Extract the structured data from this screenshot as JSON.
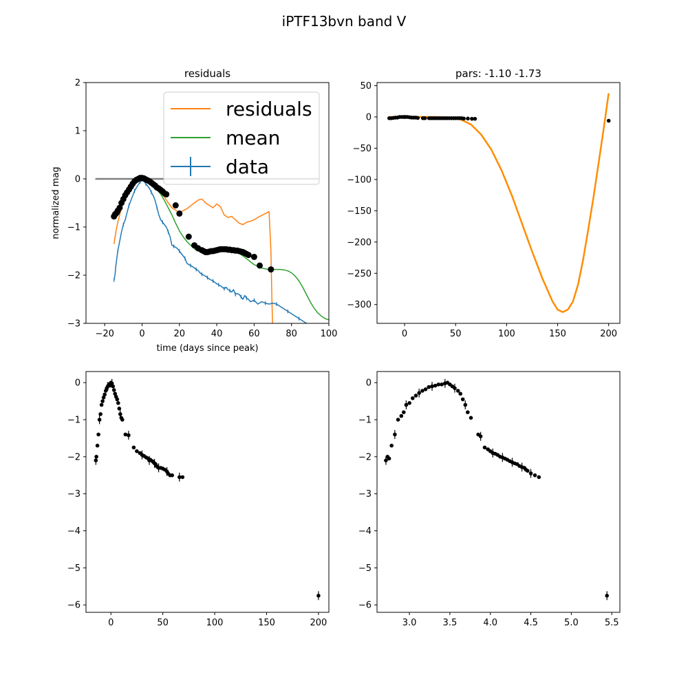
{
  "figure": {
    "suptitle": "iPTF13bvn band V"
  },
  "colors": {
    "residuals": "#ff7f0e",
    "mean": "#2ca02c",
    "data": "#1f77b4",
    "points": "#000000",
    "fit": "#ff8c00",
    "zero_line": "#808080"
  },
  "chart_data": [
    {
      "id": "top-left",
      "type": "line",
      "title": "residuals",
      "xlabel": "time (days since peak)",
      "ylabel": "normalized mag",
      "xlim": [
        -30,
        100
      ],
      "ylim": [
        -3,
        2
      ],
      "xticks": [
        -20,
        0,
        20,
        40,
        60,
        80,
        100
      ],
      "yticks": [
        -3,
        -2,
        -1,
        0,
        1,
        2
      ],
      "xtick_labels": [
        "−20",
        "0",
        "20",
        "40",
        "60",
        "80",
        "100"
      ],
      "ytick_labels": [
        "−3",
        "−2",
        "−1",
        "0",
        "1",
        "2"
      ],
      "legend": {
        "position": "upper-right",
        "entries": [
          "residuals",
          "mean",
          "data"
        ]
      },
      "zero_line": {
        "x": [
          -25,
          95
        ],
        "y": [
          0,
          0
        ]
      },
      "series": [
        {
          "name": "residuals",
          "x": [
            -15,
            -14,
            -13,
            -12,
            -11,
            -10,
            -8,
            -6,
            -4,
            -2,
            0,
            2,
            4,
            6,
            8,
            10,
            12,
            14,
            16,
            18,
            20,
            22,
            24,
            26,
            28,
            30,
            32,
            34,
            36,
            38,
            40,
            42,
            44,
            46,
            48,
            50,
            52,
            54,
            56,
            58,
            60,
            62,
            64,
            66,
            68,
            69,
            69.5,
            70
          ],
          "y": [
            -1.35,
            -1.1,
            -0.9,
            -0.75,
            -0.6,
            -0.45,
            -0.3,
            -0.18,
            -0.08,
            -0.02,
            0.0,
            -0.02,
            -0.06,
            -0.12,
            -0.2,
            -0.28,
            -0.38,
            -0.5,
            -0.6,
            -0.65,
            -0.7,
            -0.66,
            -0.62,
            -0.56,
            -0.5,
            -0.44,
            -0.42,
            -0.5,
            -0.55,
            -0.6,
            -0.52,
            -0.58,
            -0.75,
            -0.8,
            -0.78,
            -0.85,
            -0.92,
            -0.95,
            -0.9,
            -0.88,
            -0.85,
            -0.8,
            -0.76,
            -0.72,
            -0.68,
            -1.5,
            -2.5,
            -3.2
          ]
        },
        {
          "name": "mean",
          "x": [
            -15,
            -12,
            -10,
            -8,
            -6,
            -4,
            -2,
            0,
            2,
            4,
            6,
            8,
            10,
            12,
            14,
            16,
            18,
            20,
            22,
            24,
            26,
            28,
            30,
            32,
            34,
            36,
            38,
            40,
            42,
            44,
            46,
            48,
            50,
            52,
            54,
            56,
            58,
            60,
            62,
            64,
            66,
            68,
            70,
            72,
            74,
            76,
            78,
            80,
            82,
            84,
            86,
            88,
            90,
            92,
            94,
            96,
            98,
            100
          ],
          "y": [
            -0.78,
            -0.6,
            -0.45,
            -0.3,
            -0.18,
            -0.08,
            -0.02,
            0.0,
            -0.03,
            -0.08,
            -0.15,
            -0.22,
            -0.32,
            -0.45,
            -0.6,
            -0.75,
            -0.92,
            -1.08,
            -1.2,
            -1.3,
            -1.38,
            -1.45,
            -1.5,
            -1.52,
            -1.52,
            -1.5,
            -1.48,
            -1.46,
            -1.46,
            -1.47,
            -1.48,
            -1.5,
            -1.52,
            -1.55,
            -1.6,
            -1.66,
            -1.72,
            -1.78,
            -1.82,
            -1.85,
            -1.87,
            -1.88,
            -1.88,
            -1.88,
            -1.88,
            -1.89,
            -1.91,
            -1.95,
            -2.02,
            -2.12,
            -2.25,
            -2.4,
            -2.55,
            -2.68,
            -2.78,
            -2.85,
            -2.9,
            -2.93
          ]
        },
        {
          "name": "data",
          "x": [
            -15,
            -14.5,
            -14,
            -13,
            -12,
            -11,
            -10,
            -9,
            -8,
            -7,
            -6,
            -5,
            -4,
            -3,
            -2,
            -1,
            0,
            1,
            2,
            3,
            4,
            5,
            6,
            7,
            8,
            9,
            10,
            11,
            12,
            13,
            14,
            15,
            16,
            17,
            18,
            19,
            20,
            21,
            22,
            23,
            24,
            25,
            26,
            27,
            28,
            29,
            30,
            31,
            32,
            33,
            34,
            35,
            36,
            37,
            38,
            39,
            40,
            41,
            42,
            43,
            44,
            45,
            46,
            47,
            48,
            49,
            50,
            51,
            52,
            53,
            54,
            55,
            56,
            57,
            58,
            60,
            62,
            64,
            66,
            68,
            70,
            72,
            74,
            76,
            78,
            80,
            82,
            84,
            86,
            88
          ],
          "y": [
            -2.1,
            -2.0,
            -1.8,
            -1.5,
            -1.3,
            -1.1,
            -0.95,
            -0.85,
            -0.7,
            -0.55,
            -0.45,
            -0.35,
            -0.25,
            -0.18,
            -0.12,
            -0.06,
            -0.04,
            -0.05,
            -0.1,
            -0.15,
            -0.2,
            -0.28,
            -0.35,
            -0.45,
            -0.6,
            -0.75,
            -0.85,
            -0.9,
            -0.95,
            -1.0,
            -1.1,
            -1.2,
            -1.38,
            -1.4,
            -1.42,
            -1.45,
            -1.5,
            -1.55,
            -1.6,
            -1.65,
            -1.75,
            -1.78,
            -1.8,
            -1.82,
            -1.85,
            -1.88,
            -1.9,
            -1.95,
            -1.98,
            -2.0,
            -2.02,
            -2.05,
            -2.08,
            -2.1,
            -2.12,
            -2.15,
            -2.18,
            -2.2,
            -2.22,
            -2.25,
            -2.28,
            -2.25,
            -2.3,
            -2.32,
            -2.35,
            -2.3,
            -2.4,
            -2.38,
            -2.4,
            -2.45,
            -2.5,
            -2.42,
            -2.48,
            -2.5,
            -2.55,
            -2.52,
            -2.6,
            -2.55,
            -2.58,
            -2.6,
            -2.58,
            -2.6,
            -2.65,
            -2.7,
            -2.75,
            -2.8,
            -2.85,
            -2.9,
            -2.95,
            -3.0
          ]
        }
      ],
      "points": {
        "x": [
          -15,
          -14.5,
          -14,
          -13.5,
          -13,
          -12,
          -11,
          -10,
          -9,
          -8,
          -7,
          -6,
          -5,
          -4,
          -3,
          -2,
          -1,
          0,
          1,
          2,
          3,
          4,
          5,
          6,
          7,
          8,
          9,
          10,
          11,
          12,
          13,
          18,
          20,
          25,
          28,
          30,
          32,
          33,
          34,
          35,
          36,
          37,
          38,
          39,
          40,
          41,
          42,
          43,
          44,
          45,
          46,
          47,
          48,
          49,
          50,
          51,
          52,
          53,
          54,
          55,
          56,
          57,
          60,
          63,
          69
        ],
        "y": [
          -0.78,
          -0.74,
          -0.72,
          -0.7,
          -0.66,
          -0.6,
          -0.5,
          -0.42,
          -0.34,
          -0.28,
          -0.22,
          -0.16,
          -0.1,
          -0.05,
          -0.02,
          0.0,
          0.02,
          0.02,
          0.01,
          -0.01,
          -0.03,
          -0.05,
          -0.08,
          -0.11,
          -0.14,
          -0.18,
          -0.2,
          -0.23,
          -0.26,
          -0.3,
          -0.32,
          -0.55,
          -0.72,
          -1.2,
          -1.38,
          -1.44,
          -1.48,
          -1.5,
          -1.52,
          -1.52,
          -1.51,
          -1.5,
          -1.5,
          -1.49,
          -1.48,
          -1.47,
          -1.46,
          -1.46,
          -1.46,
          -1.46,
          -1.47,
          -1.47,
          -1.48,
          -1.48,
          -1.49,
          -1.49,
          -1.5,
          -1.51,
          -1.52,
          -1.54,
          -1.56,
          -1.58,
          -1.62,
          -1.8,
          -1.88
        ]
      }
    },
    {
      "id": "top-right",
      "type": "line",
      "title": "pars: -1.10 -1.73",
      "xlim": [
        -27,
        211
      ],
      "ylim": [
        -330,
        55
      ],
      "xticks": [
        0,
        50,
        100,
        150,
        200
      ],
      "yticks": [
        50,
        0,
        -50,
        -100,
        -150,
        -200,
        -250,
        -300
      ],
      "xtick_labels": [
        "0",
        "50",
        "100",
        "150",
        "200"
      ],
      "ytick_labels": [
        "50",
        "0",
        "−50",
        "−100",
        "−150",
        "−200",
        "−250",
        "−300"
      ],
      "series": [
        {
          "name": "",
          "x": [
            -15,
            0,
            15,
            30,
            45,
            55,
            65,
            75,
            85,
            95,
            105,
            115,
            125,
            135,
            145,
            150,
            155,
            160,
            165,
            170,
            175,
            180,
            185,
            190,
            195,
            200
          ],
          "y": [
            0,
            0,
            0,
            0,
            -1,
            -4,
            -12,
            -28,
            -52,
            -85,
            -125,
            -170,
            -215,
            -258,
            -295,
            -308,
            -312,
            -308,
            -295,
            -268,
            -228,
            -180,
            -130,
            -75,
            -20,
            38
          ]
        }
      ],
      "points": {
        "x": [
          -15,
          -13,
          -11,
          -9,
          -7,
          -5,
          -3,
          -1,
          0,
          1,
          3,
          5,
          7,
          9,
          11,
          13,
          18,
          20,
          24,
          26,
          28,
          30,
          32,
          34,
          36,
          38,
          40,
          42,
          44,
          46,
          48,
          50,
          52,
          54,
          56,
          58,
          62,
          66,
          69,
          200
        ],
        "y": [
          -2,
          -2,
          -1.5,
          -1,
          -1,
          0,
          0,
          0,
          0,
          0,
          0,
          -0.5,
          -1,
          -1,
          -1,
          -1.5,
          -2,
          -2,
          -2,
          -2,
          -2,
          -2,
          -2,
          -2,
          -2,
          -2,
          -2,
          -2,
          -2,
          -2,
          -2,
          -2,
          -2,
          -2,
          -2,
          -2.5,
          -2.5,
          -3,
          -3,
          -6
        ]
      }
    },
    {
      "id": "bottom-left",
      "type": "scatter",
      "xlim": [
        -24,
        210
      ],
      "ylim": [
        -6.2,
        0.3
      ],
      "xticks": [
        0,
        50,
        100,
        150,
        200
      ],
      "yticks": [
        0,
        -1,
        -2,
        -3,
        -4,
        -5,
        -6
      ],
      "xtick_labels": [
        "0",
        "50",
        "100",
        "150",
        "200"
      ],
      "ytick_labels": [
        "0",
        "−1",
        "−2",
        "−3",
        "−4",
        "−5",
        "−6"
      ],
      "points": {
        "x": [
          -14.5,
          -14,
          -13,
          -12,
          -11,
          -10,
          -9,
          -8,
          -7,
          -6,
          -5,
          -4,
          -3,
          -2,
          -1,
          0,
          1,
          2,
          3,
          4,
          5,
          6,
          7,
          8,
          9,
          10,
          11,
          14,
          17,
          22,
          25,
          28,
          30,
          32,
          34,
          36,
          37,
          38,
          40,
          41,
          42,
          43,
          44,
          45,
          46,
          48,
          50,
          52,
          54,
          55,
          57,
          59,
          66,
          69,
          200
        ],
        "y": [
          -2.1,
          -2.0,
          -1.7,
          -1.4,
          -1.0,
          -0.85,
          -0.6,
          -0.5,
          -0.4,
          -0.32,
          -0.22,
          -0.15,
          -0.1,
          -0.05,
          -0.08,
          0.0,
          -0.02,
          -0.1,
          -0.2,
          -0.3,
          -0.38,
          -0.45,
          -0.55,
          -0.7,
          -0.85,
          -0.95,
          -1.0,
          -1.4,
          -1.42,
          -1.75,
          -1.85,
          -1.9,
          -1.95,
          -1.98,
          -2.02,
          -2.05,
          -2.1,
          -2.08,
          -2.12,
          -2.15,
          -2.18,
          -2.2,
          -2.25,
          -2.28,
          -2.3,
          -2.3,
          -2.32,
          -2.35,
          -2.4,
          -2.45,
          -2.5,
          -2.5,
          -2.55,
          -2.55,
          -5.75
        ]
      }
    },
    {
      "id": "bottom-right",
      "type": "scatter",
      "xlim": [
        2.6,
        5.6
      ],
      "ylim": [
        -6.2,
        0.3
      ],
      "xticks": [
        3.0,
        3.5,
        4.0,
        4.5,
        5.0,
        5.5
      ],
      "yticks": [
        0,
        -1,
        -2,
        -3,
        -4,
        -5,
        -6
      ],
      "xtick_labels": [
        "3.0",
        "3.5",
        "4.0",
        "4.5",
        "5.0",
        "5.5"
      ],
      "ytick_labels": [
        "0",
        "−1",
        "−2",
        "−3",
        "−4",
        "−5",
        "−6"
      ],
      "points": {
        "x": [
          2.71,
          2.73,
          2.75,
          2.78,
          2.82,
          2.86,
          2.9,
          2.93,
          2.96,
          3.0,
          3.04,
          3.08,
          3.12,
          3.16,
          3.2,
          3.24,
          3.28,
          3.32,
          3.36,
          3.4,
          3.44,
          3.47,
          3.5,
          3.53,
          3.56,
          3.6,
          3.63,
          3.66,
          3.69,
          3.72,
          3.76,
          3.85,
          3.88,
          3.93,
          3.97,
          4.0,
          4.03,
          4.06,
          4.09,
          4.12,
          4.15,
          4.18,
          4.21,
          4.24,
          4.27,
          4.3,
          4.33,
          4.36,
          4.39,
          4.42,
          4.44,
          4.46,
          4.5,
          4.55,
          4.6,
          5.44
        ],
        "y": [
          -2.1,
          -2.0,
          -2.05,
          -1.7,
          -1.4,
          -1.0,
          -0.9,
          -0.8,
          -0.6,
          -0.55,
          -0.42,
          -0.35,
          -0.28,
          -0.22,
          -0.18,
          -0.12,
          -0.1,
          -0.08,
          -0.05,
          -0.05,
          -0.02,
          0.0,
          -0.05,
          -0.1,
          -0.15,
          -0.22,
          -0.3,
          -0.45,
          -0.6,
          -0.8,
          -0.95,
          -1.4,
          -1.45,
          -1.75,
          -1.8,
          -1.85,
          -1.9,
          -1.92,
          -1.95,
          -2.0,
          -2.02,
          -2.05,
          -2.08,
          -2.12,
          -2.15,
          -2.18,
          -2.2,
          -2.25,
          -2.28,
          -2.3,
          -2.35,
          -2.38,
          -2.45,
          -2.5,
          -2.55,
          -5.75
        ]
      }
    }
  ]
}
